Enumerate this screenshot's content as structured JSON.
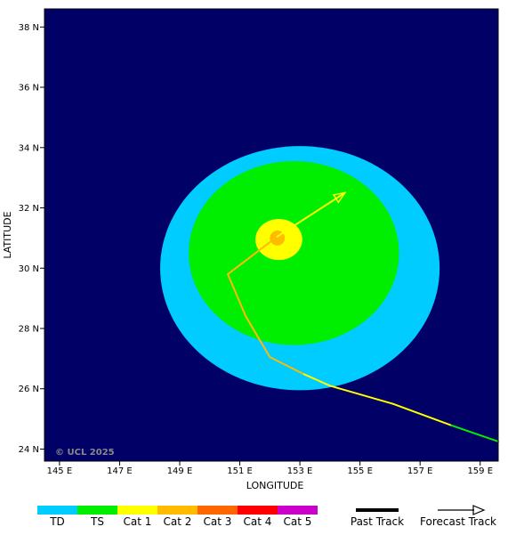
{
  "axes": {
    "xlabel": "LONGITUDE",
    "ylabel": "LATITUDE",
    "x_ticks": [
      "145 E",
      "147 E",
      "149 E",
      "151 E",
      "153 E",
      "155 E",
      "157 E",
      "159 E"
    ],
    "y_ticks": [
      "24 N",
      "26 N",
      "28 N",
      "30 N",
      "32 N",
      "34 N",
      "36 N",
      "38 N"
    ]
  },
  "copyright": "© UCL 2025",
  "colors": {
    "background": "#000066",
    "TD": "#00ccff",
    "TS": "#00ee00",
    "Cat 1": "#ffff00",
    "Cat 2": "#ffbb00",
    "Cat 3": "#ff6600",
    "Cat 4": "#ff0000",
    "Cat 5": "#cc00cc"
  },
  "legend": {
    "categories": [
      "TD",
      "TS",
      "Cat 1",
      "Cat 2",
      "Cat 3",
      "Cat 4",
      "Cat 5"
    ],
    "past_track": "Past Track",
    "forecast_track": "Forecast Track"
  },
  "chart_data": {
    "type": "map",
    "xlim": [
      144.5,
      159.6
    ],
    "ylim": [
      23.6,
      38.6
    ],
    "wind_field": [
      {
        "category": "TD",
        "center_lon": 153.0,
        "center_lat": 30.0,
        "radius_lon": 4.65,
        "radius_lat": 4.05
      },
      {
        "category": "TS",
        "center_lon": 152.8,
        "center_lat": 30.5,
        "radius_lon": 3.5,
        "radius_lat": 3.05
      },
      {
        "category": "Cat 1",
        "center_lon": 152.3,
        "center_lat": 30.95,
        "radius_lon": 0.78,
        "radius_lat": 0.68
      },
      {
        "category": "Cat 2",
        "center_lon": 152.25,
        "center_lat": 31.0,
        "radius_lon": 0.25,
        "radius_lat": 0.25
      }
    ],
    "past_track": [
      {
        "lon": 159.6,
        "lat": 24.25,
        "category": "TS"
      },
      {
        "lon": 158.0,
        "lat": 24.8,
        "category": "TS"
      },
      {
        "lon": 156.1,
        "lat": 25.5,
        "category": "Cat 1"
      },
      {
        "lon": 154.0,
        "lat": 26.1,
        "category": "Cat 1"
      },
      {
        "lon": 153.1,
        "lat": 26.5,
        "category": "Cat 1"
      },
      {
        "lon": 152.0,
        "lat": 27.05,
        "category": "Cat 2"
      },
      {
        "lon": 151.2,
        "lat": 28.4,
        "category": "Cat 2"
      },
      {
        "lon": 150.6,
        "lat": 29.8,
        "category": "Cat 2"
      },
      {
        "lon": 152.25,
        "lat": 31.05,
        "category": "Cat 2"
      }
    ],
    "forecast_track": [
      {
        "lon": 152.25,
        "lat": 31.05,
        "category": "Cat 2"
      },
      {
        "lon": 154.5,
        "lat": 32.5,
        "category": "Cat 1"
      }
    ]
  }
}
